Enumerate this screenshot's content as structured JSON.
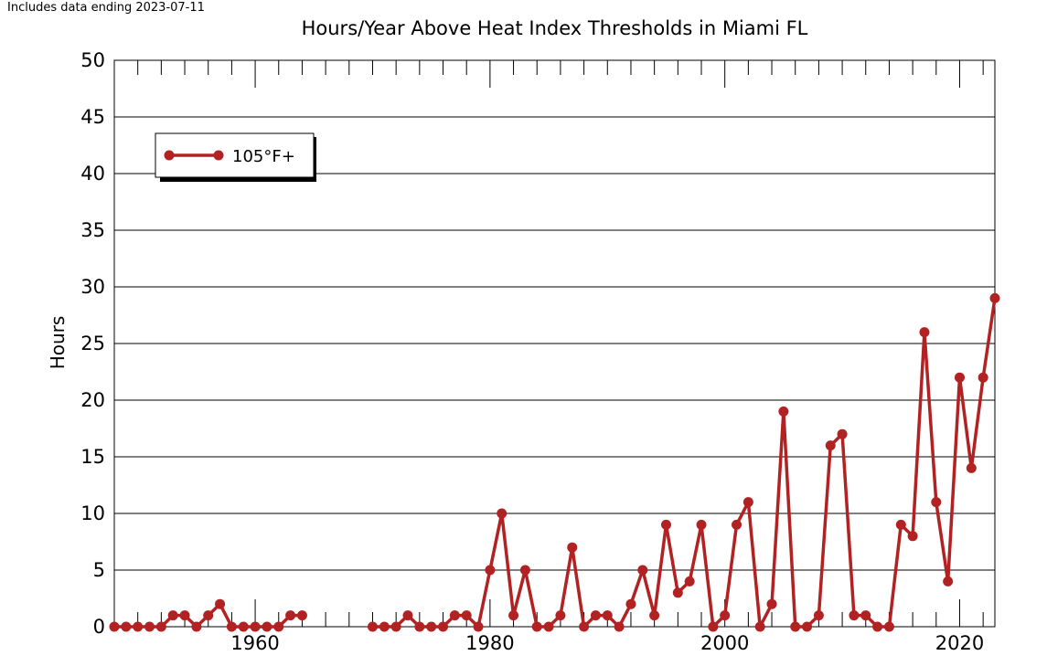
{
  "note": "Includes data ending 2023-07-11",
  "chart_data": {
    "type": "line",
    "title": "Hours/Year Above Heat Index Thresholds in Miami FL",
    "xlabel": "",
    "ylabel": "Hours",
    "xlim": [
      1948,
      2023
    ],
    "ylim": [
      0,
      50
    ],
    "yticks": [
      0,
      5,
      10,
      15,
      20,
      25,
      30,
      35,
      40,
      45,
      50
    ],
    "xticks": [
      1960,
      1980,
      2000,
      2020
    ],
    "grid": "horizontal",
    "legend_position": "upper-left",
    "series": [
      {
        "name": "105°F+",
        "color": "#b22222",
        "points": [
          [
            1948,
            0
          ],
          [
            1949,
            0
          ],
          [
            1950,
            0
          ],
          [
            1951,
            0
          ],
          [
            1952,
            0
          ],
          [
            1953,
            1
          ],
          [
            1954,
            1
          ],
          [
            1955,
            0
          ],
          [
            1956,
            1
          ],
          [
            1957,
            2
          ],
          [
            1958,
            0
          ],
          [
            1959,
            0
          ],
          [
            1960,
            0
          ],
          [
            1961,
            0
          ],
          [
            1962,
            0
          ],
          [
            1963,
            1
          ],
          [
            1964,
            1
          ],
          null,
          [
            1970,
            0
          ],
          [
            1971,
            0
          ],
          [
            1972,
            0
          ],
          [
            1973,
            1
          ],
          [
            1974,
            0
          ],
          [
            1975,
            0
          ],
          [
            1976,
            0
          ],
          [
            1977,
            1
          ],
          [
            1978,
            1
          ],
          [
            1979,
            0
          ],
          [
            1980,
            5
          ],
          [
            1981,
            10
          ],
          [
            1982,
            1
          ],
          [
            1983,
            5
          ],
          [
            1984,
            0
          ],
          [
            1985,
            0
          ],
          [
            1986,
            1
          ],
          [
            1987,
            7
          ],
          [
            1988,
            0
          ],
          [
            1989,
            1
          ],
          [
            1990,
            1
          ],
          [
            1991,
            0
          ],
          [
            1992,
            2
          ],
          [
            1993,
            5
          ],
          [
            1994,
            1
          ],
          [
            1995,
            9
          ],
          [
            1996,
            3
          ],
          [
            1997,
            4
          ],
          [
            1998,
            9
          ],
          [
            1999,
            0
          ],
          [
            2000,
            1
          ],
          [
            2001,
            9
          ],
          [
            2002,
            11
          ],
          [
            2003,
            0
          ],
          [
            2004,
            2
          ],
          [
            2005,
            19
          ],
          [
            2006,
            0
          ],
          [
            2007,
            0
          ],
          [
            2008,
            1
          ],
          [
            2009,
            16
          ],
          [
            2010,
            17
          ],
          [
            2011,
            1
          ],
          [
            2012,
            1
          ],
          [
            2013,
            0
          ],
          [
            2014,
            0
          ],
          [
            2015,
            9
          ],
          [
            2016,
            8
          ],
          [
            2017,
            26
          ],
          [
            2018,
            11
          ],
          [
            2019,
            4
          ],
          [
            2020,
            22
          ],
          [
            2021,
            14
          ],
          [
            2022,
            22
          ],
          [
            2023,
            29
          ]
        ]
      }
    ]
  }
}
